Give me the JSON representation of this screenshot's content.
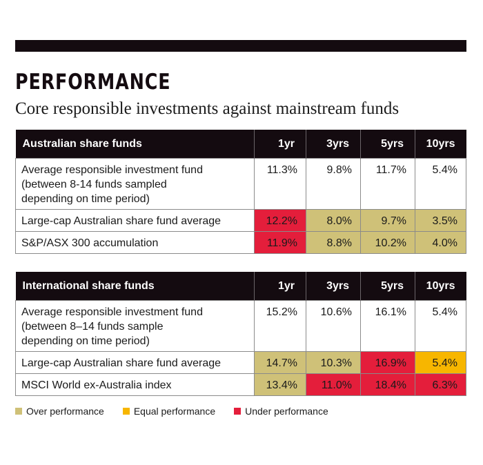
{
  "title": "PERFORMANCE",
  "subtitle": "Core responsible investments against mainstream funds",
  "colors": {
    "over": "#cfc178",
    "equal": "#f7b600",
    "under": "#e41e3b",
    "none": "#ffffff",
    "header_bg": "#140b10"
  },
  "legend": [
    {
      "key": "over",
      "label": "Over performance"
    },
    {
      "key": "equal",
      "label": "Equal performance"
    },
    {
      "key": "under",
      "label": "Under performance"
    }
  ],
  "chart_data": {
    "type": "table",
    "tables": [
      {
        "header": "Australian share funds",
        "columns": [
          "1yr",
          "3yrs",
          "5yrs",
          "10yrs"
        ],
        "rows": [
          {
            "label": "Average responsible investment fund (between 8-14 funds sampled depending on time period)",
            "values": [
              "11.3%",
              "9.8%",
              "11.7%",
              "5.4%"
            ],
            "status": [
              "none",
              "none",
              "none",
              "none"
            ]
          },
          {
            "label": "Large-cap Australian share fund average",
            "values": [
              "12.2%",
              "8.0%",
              "9.7%",
              "3.5%"
            ],
            "status": [
              "under",
              "over",
              "over",
              "over"
            ]
          },
          {
            "label": "S&P/ASX 300 accumulation",
            "values": [
              "11.9%",
              "8.8%",
              "10.2%",
              "4.0%"
            ],
            "status": [
              "under",
              "over",
              "over",
              "over"
            ]
          }
        ]
      },
      {
        "header": "International share funds",
        "columns": [
          "1yr",
          "3yrs",
          "5yrs",
          "10yrs"
        ],
        "rows": [
          {
            "label": "Average responsible investment fund (between 8–14 funds sample depending on time period)",
            "values": [
              "15.2%",
              "10.6%",
              "16.1%",
              "5.4%"
            ],
            "status": [
              "none",
              "none",
              "none",
              "none"
            ]
          },
          {
            "label": "Large-cap Australian share fund average",
            "values": [
              "14.7%",
              "10.3%",
              "16.9%",
              "5.4%"
            ],
            "status": [
              "over",
              "over",
              "under",
              "equal"
            ]
          },
          {
            "label": "MSCI World ex-Australia index",
            "values": [
              "13.4%",
              "11.0%",
              "18.4%",
              "6.3%"
            ],
            "status": [
              "over",
              "under",
              "under",
              "under"
            ]
          }
        ]
      }
    ]
  }
}
